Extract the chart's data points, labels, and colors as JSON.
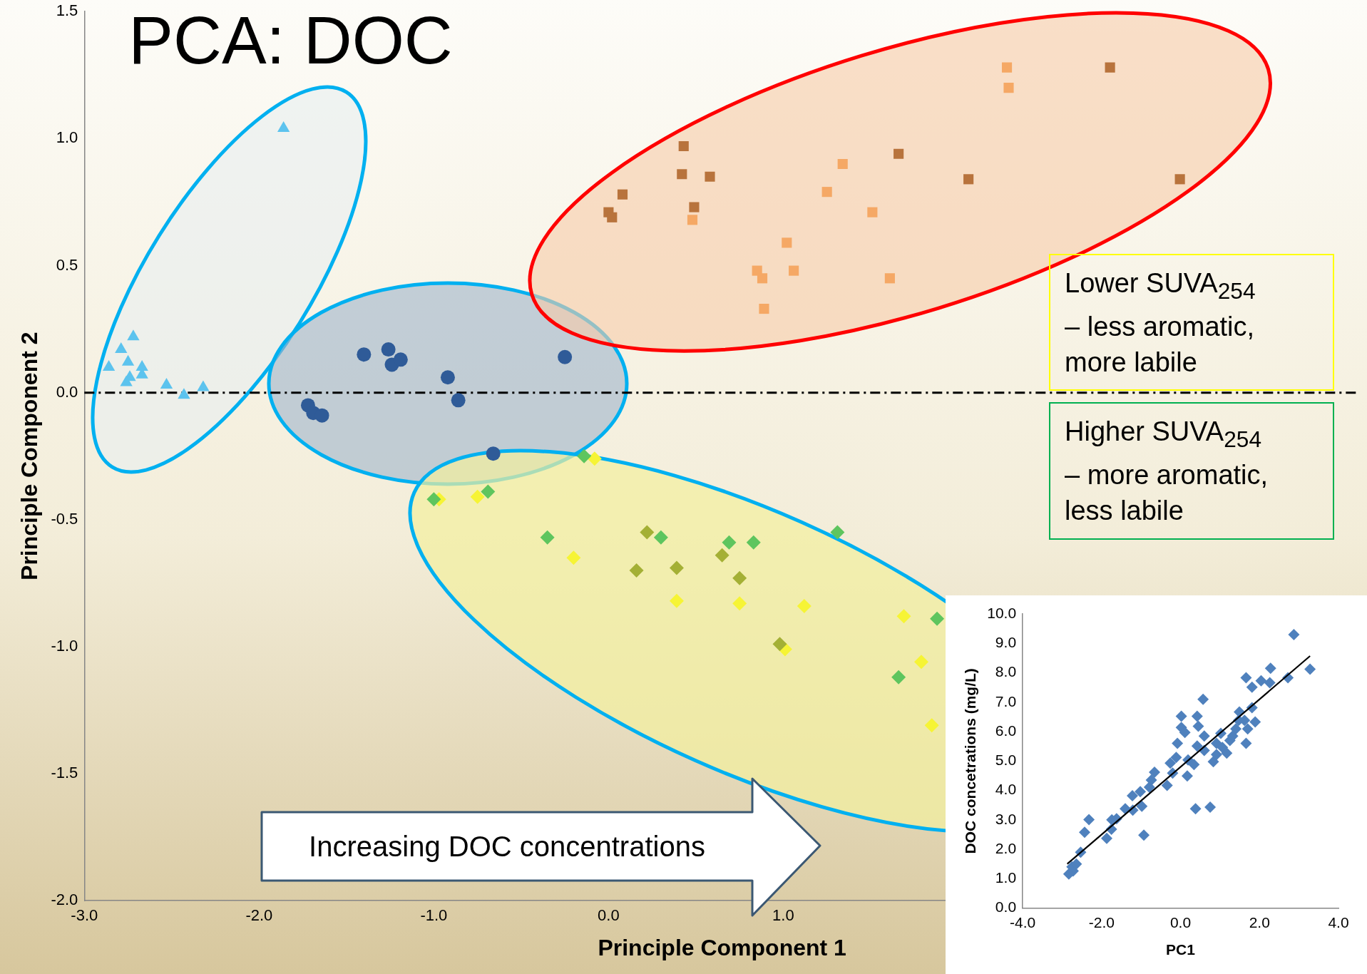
{
  "chart_data": [
    {
      "type": "scatter",
      "title": "PCA: DOC",
      "xlabel": "Principle Component 1",
      "ylabel": "Principle Component 2",
      "xlim": [
        -3,
        4.3
      ],
      "ylim": [
        -2,
        1.5
      ],
      "xticks": [
        {
          "value": -3,
          "label": "-3.0"
        },
        {
          "value": -2,
          "label": "-2.0"
        },
        {
          "value": -1,
          "label": "-1.0"
        },
        {
          "value": 0,
          "label": "0.0"
        },
        {
          "value": 1,
          "label": "1.0"
        }
      ],
      "yticks": [
        {
          "value": -2,
          "label": "-2.0"
        },
        {
          "value": -1.5,
          "label": "-1.5"
        },
        {
          "value": -1,
          "label": "-1.0"
        },
        {
          "value": -0.5,
          "label": "-0.5"
        },
        {
          "value": 0,
          "label": "0.0"
        },
        {
          "value": 0.5,
          "label": "0.5"
        },
        {
          "value": 1,
          "label": "1.0"
        },
        {
          "value": 1.5,
          "label": "1.5"
        }
      ],
      "ref_lines": [
        {
          "axis": "y",
          "value": 0,
          "color": "#000000",
          "line_style": "dashdot"
        }
      ],
      "annotations": [
        "Lower SUVA$_{254}$ – less aromatic, more labile",
        "Higher SUVA$_{254}$ – more aromatic, less labile",
        "Increasing DOC concentrations"
      ],
      "series": [
        {
          "color": "#5cc3ee",
          "marker": "triangle",
          "x": [
            -2.72,
            -2.79,
            -2.86,
            -2.75,
            -2.67,
            -2.74,
            -2.76,
            -2.67,
            -2.53,
            -2.43,
            -2.32,
            -1.86
          ],
          "values": [
            0.22,
            0.17,
            0.1,
            0.12,
            0.1,
            0.06,
            0.04,
            0.07,
            0.03,
            -0.01,
            0.02,
            1.04
          ]
        },
        {
          "color": "#2f5b98",
          "marker": "circle",
          "x": [
            -1.4,
            -1.26,
            -1.24,
            -1.19,
            -0.92,
            -0.86,
            -0.25,
            -1.72,
            -1.69,
            -1.64,
            -0.66
          ],
          "values": [
            0.15,
            0.17,
            0.11,
            0.13,
            0.06,
            -0.03,
            0.14,
            -0.05,
            -0.08,
            -0.09,
            -0.24
          ]
        },
        {
          "color": "#b8733c",
          "marker": "square",
          "x": [
            0.43,
            0.42,
            0.58,
            0.08,
            0.0,
            0.02,
            0.49,
            1.66,
            2.06,
            2.87,
            3.27
          ],
          "values": [
            0.97,
            0.86,
            0.85,
            0.78,
            0.71,
            0.69,
            0.73,
            0.94,
            0.84,
            1.28,
            0.84
          ]
        },
        {
          "color": "#f5a865",
          "marker": "square",
          "x": [
            2.28,
            2.29,
            1.34,
            1.25,
            1.51,
            0.48,
            1.02,
            0.85,
            0.88,
            1.06,
            1.61,
            0.89
          ],
          "values": [
            1.28,
            1.2,
            0.9,
            0.79,
            0.71,
            0.68,
            0.59,
            0.48,
            0.45,
            0.48,
            0.45,
            0.33
          ]
        },
        {
          "color": "#5ec55e",
          "marker": "diamond",
          "x": [
            -1.0,
            -0.69,
            -0.14,
            -0.35,
            0.3,
            0.69,
            0.83,
            1.31,
            1.66,
            1.88
          ],
          "values": [
            -0.42,
            -0.39,
            -0.25,
            -0.57,
            -0.57,
            -0.59,
            -0.59,
            -0.55,
            -1.12,
            -0.89
          ]
        },
        {
          "color": "#a4b035",
          "marker": "diamond",
          "x": [
            0.22,
            0.16,
            0.39,
            0.65,
            0.75,
            0.98
          ],
          "values": [
            -0.55,
            -0.7,
            -0.69,
            -0.64,
            -0.73,
            -0.99
          ]
        },
        {
          "color": "#f6f435",
          "marker": "diamond",
          "x": [
            -0.97,
            -0.75,
            -0.08,
            -0.2,
            0.39,
            0.75,
            1.12,
            1.01,
            1.69,
            1.79,
            1.85
          ],
          "values": [
            -0.42,
            -0.41,
            -0.26,
            -0.65,
            -0.82,
            -0.83,
            -0.84,
            -1.01,
            -0.88,
            -1.06,
            -1.31
          ]
        }
      ]
    },
    {
      "type": "scatter",
      "xlabel": "PC1",
      "ylabel": "DOC concetrations (mg/L)",
      "xlim": [
        -4,
        4
      ],
      "ylim": [
        0,
        10
      ],
      "xticks": [
        {
          "value": -4,
          "label": "-4.0"
        },
        {
          "value": -2,
          "label": "-2.0"
        },
        {
          "value": 0,
          "label": "0.0"
        },
        {
          "value": 2,
          "label": "2.0"
        },
        {
          "value": 4,
          "label": "4.0"
        }
      ],
      "yticks": [
        {
          "value": 0,
          "label": "0.0"
        },
        {
          "value": 1,
          "label": "1.0"
        },
        {
          "value": 2,
          "label": "2.0"
        },
        {
          "value": 3,
          "label": "3.0"
        },
        {
          "value": 4,
          "label": "4.0"
        },
        {
          "value": 5,
          "label": "5.0"
        },
        {
          "value": 6,
          "label": "6.0"
        },
        {
          "value": 7,
          "label": "7.0"
        },
        {
          "value": 8,
          "label": "8.0"
        },
        {
          "value": 9,
          "label": "9.0"
        },
        {
          "value": 10,
          "label": "10.0"
        }
      ],
      "series": [
        {
          "color": "#4f81bd",
          "marker": "diamond",
          "x": [
            -2.83,
            -2.72,
            -2.75,
            -2.64,
            -2.53,
            -2.43,
            -2.32,
            -1.87,
            -1.75,
            -1.74,
            -1.62,
            -1.4,
            -1.21,
            -1.22,
            -0.98,
            -0.93,
            -1.02,
            -0.79,
            -0.74,
            -0.66,
            -0.34,
            -0.2,
            -0.26,
            -0.11,
            -0.08,
            0.02,
            0.02,
            0.11,
            0.17,
            0.19,
            0.34,
            0.38,
            0.42,
            0.45,
            0.42,
            0.57,
            0.6,
            0.6,
            0.75,
            0.83,
            0.91,
            0.91,
            1.02,
            1.06,
            1.17,
            1.25,
            1.32,
            1.4,
            1.47,
            1.49,
            1.62,
            1.66,
            1.7,
            1.81,
            1.89,
            1.66,
            1.81,
            2.04,
            2.26,
            2.28,
            2.72,
            2.87,
            3.28
          ],
          "values": [
            1.16,
            1.26,
            1.4,
            1.5,
            1.9,
            2.58,
            3.01,
            2.37,
            2.68,
            3.0,
            3.04,
            3.38,
            3.33,
            3.82,
            3.46,
            2.48,
            3.96,
            4.11,
            4.35,
            4.62,
            4.17,
            4.59,
            4.93,
            5.12,
            5.6,
            6.52,
            6.14,
            5.97,
            4.49,
            5.04,
            4.88,
            3.38,
            6.52,
            6.18,
            5.51,
            7.1,
            5.85,
            5.36,
            3.43,
            4.98,
            5.22,
            5.6,
            5.94,
            5.46,
            5.27,
            5.7,
            5.85,
            6.09,
            6.38,
            6.67,
            6.38,
            5.6,
            6.09,
            6.81,
            6.33,
            7.83,
            7.51,
            7.73,
            7.66,
            8.15,
            7.83,
            9.3,
            8.12
          ]
        },
        {
          "type": "line",
          "color": "#000000",
          "marker": "none",
          "x": [
            -2.87,
            3.28
          ],
          "values": [
            1.5,
            8.57
          ]
        }
      ]
    }
  ]
}
